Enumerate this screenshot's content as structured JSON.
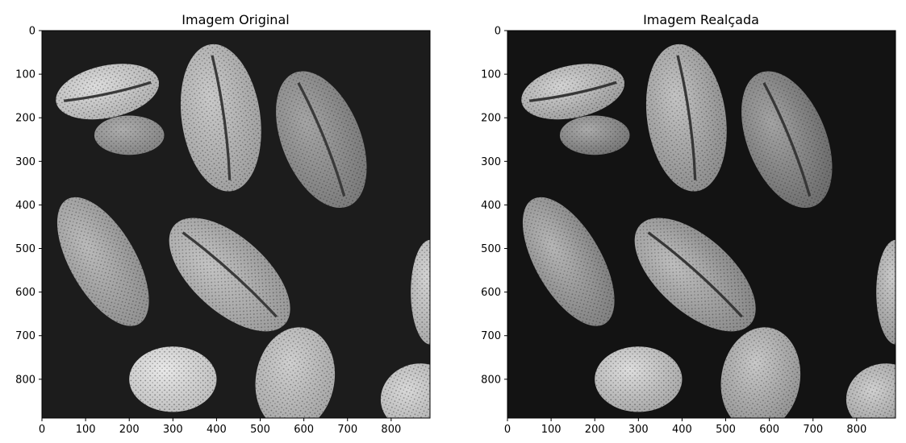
{
  "chart_data": [
    {
      "type": "image",
      "title": "Imagem Original",
      "xlabel": "",
      "ylabel": "",
      "xlim": [
        0,
        889
      ],
      "ylim": [
        889,
        0
      ],
      "xticks": [
        0,
        100,
        200,
        300,
        400,
        500,
        600,
        700,
        800
      ],
      "yticks": [
        0,
        100,
        200,
        300,
        400,
        500,
        600,
        700,
        800
      ],
      "colormap": "gray",
      "grid": false,
      "subject": "pollen grains micrograph"
    },
    {
      "type": "image",
      "title": "Imagem Realçada",
      "xlabel": "",
      "ylabel": "",
      "xlim": [
        0,
        889
      ],
      "ylim": [
        889,
        0
      ],
      "xticks": [
        0,
        100,
        200,
        300,
        400,
        500,
        600,
        700,
        800
      ],
      "yticks": [
        0,
        100,
        200,
        300,
        400,
        500,
        600,
        700,
        800
      ],
      "colormap": "gray",
      "grid": false,
      "subject": "pollen grains micrograph"
    }
  ],
  "grains": [
    {
      "cx": 150,
      "cy": 140,
      "rx": 240,
      "ry": 120,
      "rot": -12,
      "shade": "#d4d4d4",
      "seam": true
    },
    {
      "cx": 410,
      "cy": 200,
      "rx": 180,
      "ry": 340,
      "rot": -8,
      "shade": "#bdbdbd",
      "seam": true
    },
    {
      "cx": 640,
      "cy": 250,
      "rx": 180,
      "ry": 330,
      "rot": -22,
      "shade": "#8f8f8f",
      "seam": true
    },
    {
      "cx": 140,
      "cy": 530,
      "rx": 150,
      "ry": 330,
      "rot": -30,
      "shade": "#aaaaaa",
      "seam": false
    },
    {
      "cx": 430,
      "cy": 560,
      "rx": 170,
      "ry": 340,
      "rot": -48,
      "shade": "#b5b5b5",
      "seam": true
    },
    {
      "cx": 300,
      "cy": 800,
      "rx": 200,
      "ry": 150,
      "rot": 0,
      "shade": "#e3e3e3",
      "seam": false
    },
    {
      "cx": 580,
      "cy": 800,
      "rx": 180,
      "ry": 240,
      "rot": 10,
      "shade": "#c4c4c4",
      "seam": false
    },
    {
      "cx": 860,
      "cy": 840,
      "rx": 170,
      "ry": 150,
      "rot": -20,
      "shade": "#cfcfcf",
      "seam": false
    },
    {
      "cx": 890,
      "cy": 600,
      "rx": 90,
      "ry": 240,
      "rot": 0,
      "shade": "#c9c9c9",
      "seam": false
    },
    {
      "cx": 200,
      "cy": 240,
      "rx": 160,
      "ry": 90,
      "rot": 0,
      "shade": "#9a9a9a",
      "seam": false
    }
  ]
}
